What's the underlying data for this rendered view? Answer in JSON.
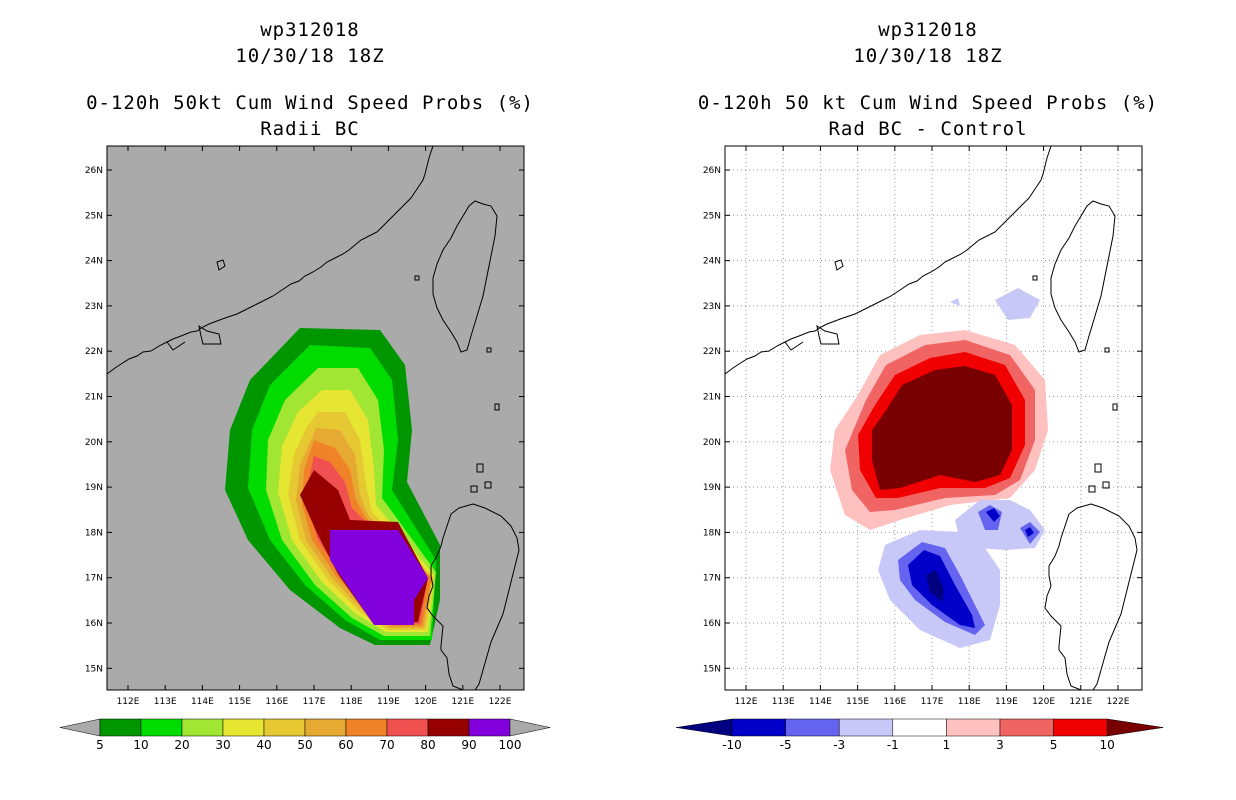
{
  "left_panel": {
    "storm": "wp312018",
    "time": "10/30/18 18Z",
    "title": "0-120h 50kt Cum Wind Speed Probs (%)",
    "subtitle": "Radii BC",
    "colorbar": {
      "labels": [
        "5",
        "10",
        "20",
        "30",
        "40",
        "50",
        "60",
        "70",
        "80",
        "90",
        "100"
      ],
      "colors": [
        "#009600",
        "#00dc00",
        "#a0e632",
        "#e6e632",
        "#e6c832",
        "#e6aa32",
        "#f08228",
        "#f05050",
        "#960000",
        "#8200dc"
      ]
    }
  },
  "right_panel": {
    "storm": "wp312018",
    "time": "10/30/18 18Z",
    "title": "0-120h 50 kt Cum Wind Speed Probs (%)",
    "subtitle": "Rad BC - Control",
    "colorbar": {
      "labels": [
        "-10",
        "-5",
        "-3",
        "-1",
        "1",
        "3",
        "5",
        "10"
      ],
      "colors": [
        "#0000c8",
        "#6464f0",
        "#c8c8f8",
        "#ffffff",
        "#ffc0c0",
        "#f06464",
        "#f00000"
      ],
      "end_left": "#000080",
      "end_right": "#780000"
    }
  },
  "axes": {
    "lat_labels": [
      "26N",
      "25N",
      "24N",
      "23N",
      "22N",
      "21N",
      "20N",
      "19N",
      "18N",
      "17N",
      "16N",
      "15N"
    ],
    "lon_labels": [
      "112E",
      "113E",
      "114E",
      "115E",
      "116E",
      "117E",
      "118E",
      "119E",
      "120E",
      "121E",
      "122E"
    ]
  }
}
